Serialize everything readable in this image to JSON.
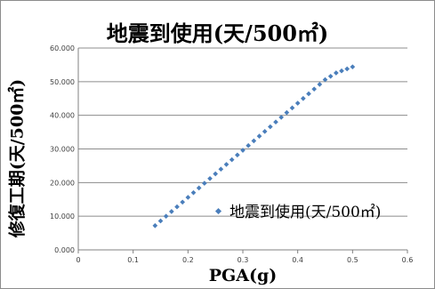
{
  "chart_data": {
    "type": "scatter",
    "title": "地震到使用(天/500㎡)",
    "xlabel": "PGA(g)",
    "ylabel": "修復工期(天/500㎡)",
    "xlim": [
      0,
      0.6
    ],
    "ylim": [
      0,
      60
    ],
    "x_ticks": [
      "0",
      "0.1",
      "0.2",
      "0.3",
      "0.4",
      "0.5",
      "0.6"
    ],
    "y_ticks": [
      "0.000",
      "10.000",
      "20.000",
      "30.000",
      "40.000",
      "50.000",
      "60.000"
    ],
    "grid": "horizontal",
    "legend_position": "right",
    "series": [
      {
        "name": "地震到使用(天/500㎡)",
        "color": "#4a7ebb",
        "marker": "diamond",
        "points": [
          [
            0.14,
            7.2
          ],
          [
            0.15,
            8.6
          ],
          [
            0.16,
            10.0
          ],
          [
            0.17,
            11.4
          ],
          [
            0.18,
            12.8
          ],
          [
            0.19,
            14.2
          ],
          [
            0.2,
            15.6
          ],
          [
            0.21,
            17.0
          ],
          [
            0.22,
            18.4
          ],
          [
            0.23,
            19.8
          ],
          [
            0.24,
            21.2
          ],
          [
            0.25,
            22.6
          ],
          [
            0.26,
            24.0
          ],
          [
            0.27,
            25.4
          ],
          [
            0.28,
            26.8
          ],
          [
            0.29,
            28.2
          ],
          [
            0.3,
            29.6
          ],
          [
            0.31,
            31.0
          ],
          [
            0.32,
            32.4
          ],
          [
            0.33,
            33.8
          ],
          [
            0.34,
            35.2
          ],
          [
            0.35,
            36.6
          ],
          [
            0.36,
            38.0
          ],
          [
            0.37,
            39.4
          ],
          [
            0.38,
            40.8
          ],
          [
            0.39,
            42.2
          ],
          [
            0.4,
            43.6
          ],
          [
            0.41,
            45.0
          ],
          [
            0.42,
            46.4
          ],
          [
            0.43,
            47.8
          ],
          [
            0.44,
            49.2
          ],
          [
            0.45,
            50.6
          ],
          [
            0.46,
            51.6
          ],
          [
            0.47,
            52.6
          ],
          [
            0.48,
            53.2
          ],
          [
            0.49,
            53.8
          ],
          [
            0.5,
            54.4
          ]
        ]
      }
    ]
  }
}
